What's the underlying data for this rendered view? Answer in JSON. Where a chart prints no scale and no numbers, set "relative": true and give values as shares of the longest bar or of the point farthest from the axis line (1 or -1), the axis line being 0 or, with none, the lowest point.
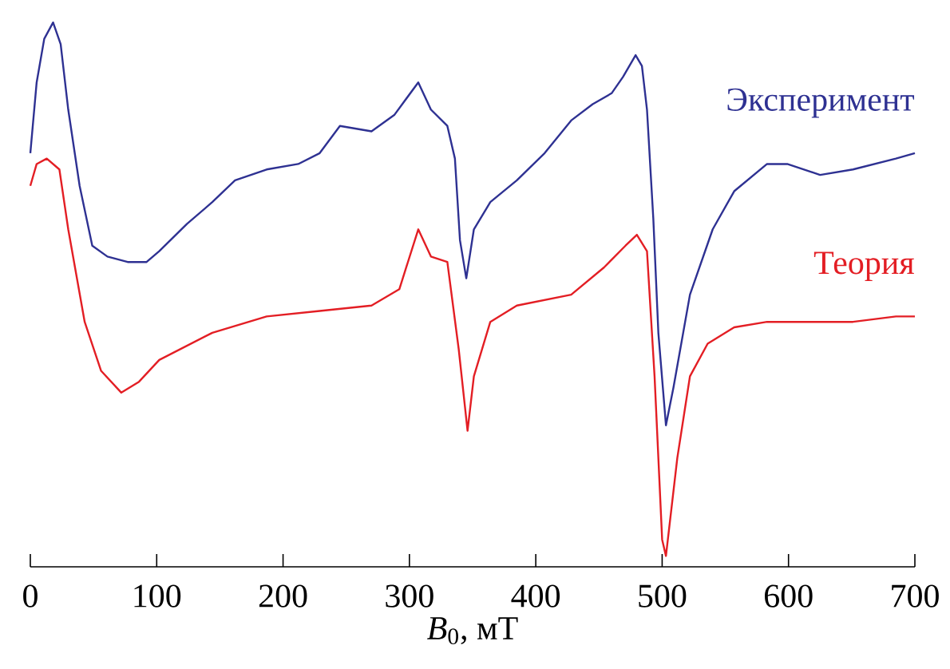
{
  "chart_data": {
    "type": "line",
    "xlabel": "*B*$_{0}$, мТ",
    "relative": true,
    "xlim": [
      0,
      700
    ],
    "xticks": [
      0,
      100,
      200,
      300,
      400,
      500,
      600,
      700
    ],
    "series": [
      {
        "name": "Эксперимент",
        "color": "#2e3192",
        "x": [
          0,
          5,
          11,
          18,
          24,
          30,
          39,
          49,
          61,
          77,
          92,
          102,
          124,
          144,
          162,
          187,
          212,
          229,
          245,
          270,
          288,
          307,
          317,
          330,
          336,
          340,
          345,
          351,
          364,
          385,
          407,
          428,
          445,
          460,
          469,
          479,
          484,
          488,
          493,
          497,
          503,
          509,
          522,
          540,
          557,
          583,
          599,
          625,
          651,
          685,
          700
        ],
        "values": [
          0.76,
          0.89,
          0.97,
          1.0,
          0.96,
          0.84,
          0.7,
          0.59,
          0.57,
          0.56,
          0.56,
          0.58,
          0.63,
          0.67,
          0.71,
          0.73,
          0.74,
          0.76,
          0.81,
          0.8,
          0.83,
          0.89,
          0.84,
          0.81,
          0.75,
          0.6,
          0.53,
          0.62,
          0.67,
          0.71,
          0.76,
          0.82,
          0.85,
          0.87,
          0.9,
          0.94,
          0.92,
          0.84,
          0.64,
          0.43,
          0.26,
          0.33,
          0.5,
          0.62,
          0.69,
          0.74,
          0.74,
          0.72,
          0.73,
          0.75,
          0.76
        ]
      },
      {
        "name": "Теория",
        "color": "#e31e24",
        "x": [
          0,
          5,
          13,
          23,
          30,
          43,
          56,
          72,
          86,
          102,
          144,
          187,
          229,
          270,
          292,
          307,
          317,
          330,
          339,
          346,
          351,
          364,
          385,
          428,
          454,
          471,
          480,
          488,
          494,
          500,
          503,
          512,
          522,
          536,
          557,
          583,
          617,
          651,
          685,
          700
        ],
        "values": [
          0.7,
          0.74,
          0.75,
          0.73,
          0.62,
          0.45,
          0.36,
          0.32,
          0.34,
          0.38,
          0.43,
          0.46,
          0.47,
          0.48,
          0.51,
          0.62,
          0.57,
          0.56,
          0.4,
          0.25,
          0.35,
          0.45,
          0.48,
          0.5,
          0.55,
          0.59,
          0.61,
          0.58,
          0.35,
          0.05,
          0.02,
          0.2,
          0.35,
          0.41,
          0.44,
          0.45,
          0.45,
          0.45,
          0.46,
          0.46
        ]
      }
    ]
  }
}
